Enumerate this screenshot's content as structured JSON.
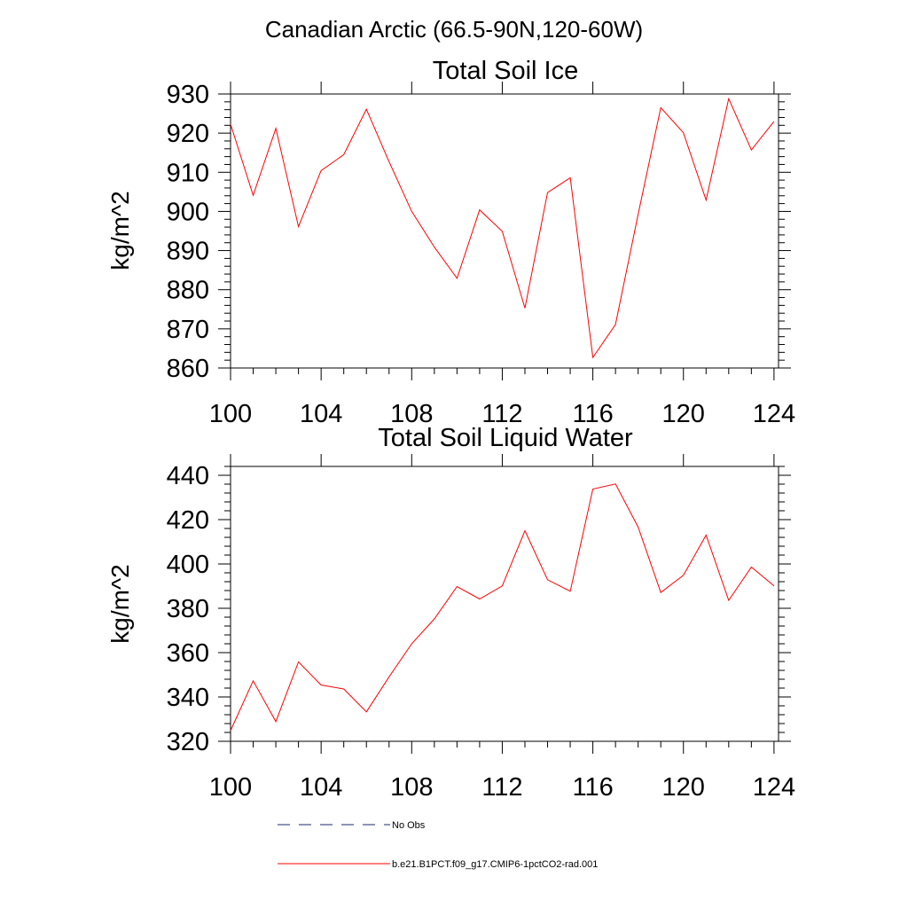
{
  "page_title": "Canadian Arctic (66.5-90N,120-60W)",
  "legend": [
    {
      "label": "No Obs",
      "style": "dashed",
      "color": "#1e2a6e"
    },
    {
      "label": "b.e21.B1PCT.f09_g17.CMIP6-1pctCO2-rad.001",
      "style": "solid",
      "color": "#ff0000"
    }
  ],
  "chart_data": [
    {
      "type": "line",
      "title": "Total Soil Ice",
      "ylabel": "kg/m^2",
      "xlabel": "",
      "xlim": [
        100,
        124.2
      ],
      "ylim": [
        860,
        930
      ],
      "xticks": [
        100,
        104,
        108,
        112,
        116,
        120,
        124
      ],
      "yticks": [
        860,
        870,
        880,
        890,
        900,
        910,
        920,
        930
      ],
      "series": [
        {
          "name": "b.e21.B1PCT.f09_g17.CMIP6-1pctCO2-rad.001",
          "color": "#ff0000",
          "x": [
            100,
            101,
            102,
            103,
            104,
            105,
            106,
            107,
            108,
            109,
            110,
            111,
            112,
            113,
            114,
            115,
            116,
            117,
            118,
            119,
            120,
            121,
            122,
            123,
            124
          ],
          "values": [
            922.3,
            904.1,
            921.2,
            896.1,
            910.4,
            914.5,
            926.1,
            912.7,
            900.0,
            890.9,
            882.9,
            900.4,
            894.9,
            875.3,
            904.8,
            908.6,
            862.7,
            871.1,
            899.3,
            926.5,
            920.1,
            902.9,
            928.8,
            915.7,
            923.0
          ]
        }
      ]
    },
    {
      "type": "line",
      "title": "Total Soil Liquid Water",
      "ylabel": "kg/m^2",
      "xlabel": "",
      "xlim": [
        100,
        124.2
      ],
      "ylim": [
        320,
        444
      ],
      "xticks": [
        100,
        104,
        108,
        112,
        116,
        120,
        124
      ],
      "yticks": [
        320,
        340,
        360,
        380,
        400,
        420,
        440
      ],
      "series": [
        {
          "name": "b.e21.B1PCT.f09_g17.CMIP6-1pctCO2-rad.001",
          "color": "#ff0000",
          "x": [
            100,
            101,
            102,
            103,
            104,
            105,
            106,
            107,
            108,
            109,
            110,
            111,
            112,
            113,
            114,
            115,
            116,
            117,
            118,
            119,
            120,
            121,
            122,
            123,
            124
          ],
          "values": [
            324.8,
            347.3,
            328.9,
            355.8,
            345.4,
            343.6,
            333.3,
            349.1,
            364.0,
            375.2,
            389.8,
            384.2,
            390.1,
            415.0,
            392.9,
            387.7,
            433.8,
            436.1,
            416.6,
            387.1,
            394.9,
            413.0,
            383.6,
            398.6,
            390.1
          ]
        }
      ]
    }
  ]
}
